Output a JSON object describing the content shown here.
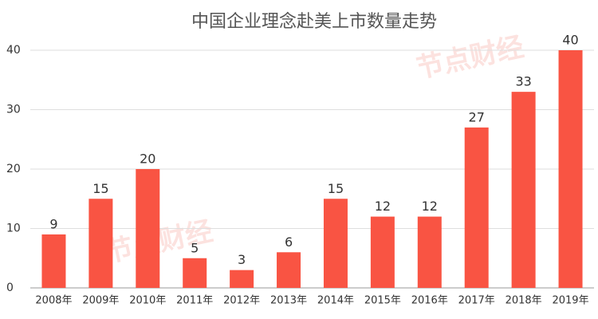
{
  "chart_data": {
    "type": "bar",
    "title": "中国企业理念赴美上市数量走势",
    "watermark": "节点财经",
    "categories": [
      "2008年",
      "2009年",
      "2010年",
      "2011年",
      "2012年",
      "2013年",
      "2014年",
      "2015年",
      "2016年",
      "2017年",
      "2018年",
      "2019年"
    ],
    "values": [
      9,
      15,
      20,
      5,
      3,
      6,
      15,
      12,
      12,
      27,
      33,
      40
    ],
    "color": "#f95443",
    "ylim": [
      0,
      40
    ],
    "yticks": [
      0,
      10,
      20,
      30,
      40
    ],
    "grid": true
  }
}
